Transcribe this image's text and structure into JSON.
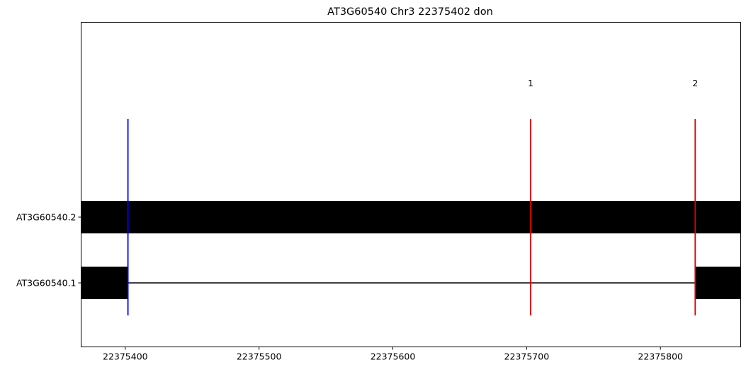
{
  "chart_data": {
    "type": "gene-structure",
    "title": "AT3G60540 Chr3 22375402 don",
    "xlim": [
      22375367,
      22375860
    ],
    "xticks": [
      22375400,
      22375500,
      22375600,
      22375700,
      22375800
    ],
    "xtick_labels": [
      "22375400",
      "22375500",
      "22375600",
      "22375700",
      "22375800"
    ],
    "transcripts": [
      {
        "name": "AT3G60540.2",
        "exons": [
          [
            22375367,
            22375860
          ]
        ],
        "introns": []
      },
      {
        "name": "AT3G60540.1",
        "exons": [
          [
            22375367,
            22375402
          ],
          [
            22375826,
            22375860
          ]
        ],
        "introns": [
          [
            22375402,
            22375826
          ]
        ]
      }
    ],
    "markers": [
      {
        "position": 22375402,
        "label": "",
        "color": "#0000ff"
      },
      {
        "position": 22375703,
        "label": "1",
        "color": "#e00000"
      },
      {
        "position": 22375826,
        "label": "2",
        "color": "#e00000"
      }
    ],
    "grid": false,
    "legend": "none"
  }
}
